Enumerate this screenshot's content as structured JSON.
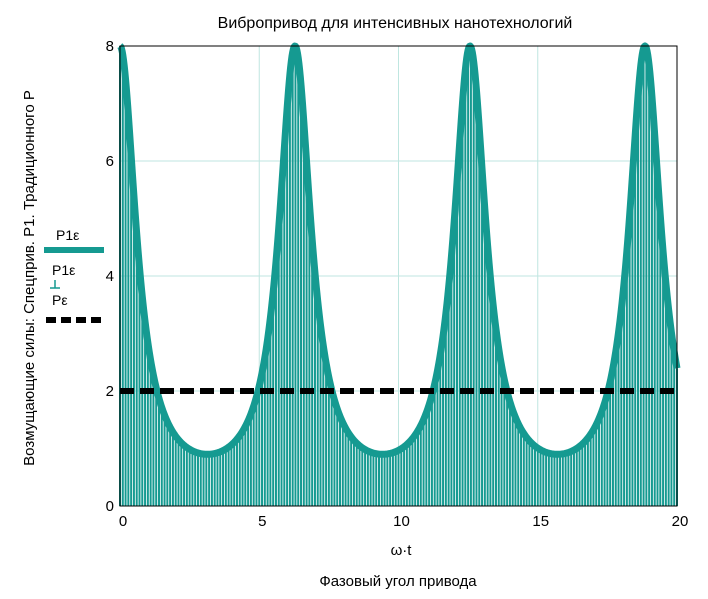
{
  "chart_data": {
    "type": "line",
    "title": "Вибропривод для интенсивных нанотехнологий",
    "xlabel": "ω·t",
    "xlabel_sub": "Фазовый угол привода",
    "ylabel": "Возмущающие силы: Спецприв. P1. Традиционного P",
    "xlim": [
      0,
      20
    ],
    "ylim": [
      0,
      8
    ],
    "x_ticks": [
      0,
      5,
      10,
      15,
      20
    ],
    "y_ticks": [
      0,
      2,
      4,
      6,
      8
    ],
    "x_tick_labels": [
      "0",
      "5",
      "10",
      "15",
      "20"
    ],
    "y_tick_labels": [
      "0",
      "2",
      "4",
      "6",
      "8"
    ],
    "grid": true,
    "legend_position": "left",
    "series": [
      {
        "name": "P1ε",
        "style": "thick-line",
        "color": "#159a91",
        "formula": "8 / (1 + 7.9 * sin(x/2)^2)",
        "peaks_at": [
          0,
          6.283,
          12.566,
          18.85
        ],
        "peak_value": 8.0,
        "min_value": 0.9
      },
      {
        "name": "P1ε",
        "style": "stem",
        "color": "#159a91",
        "stem_spacing": 0.1
      },
      {
        "name": "Pε",
        "style": "dashed",
        "color": "#000000",
        "values": [
          2.0,
          2.0
        ],
        "x": [
          0,
          20
        ]
      }
    ]
  },
  "colors": {
    "grid": "#bfe6e0",
    "teal": "#159a91",
    "axis": "#000000"
  }
}
